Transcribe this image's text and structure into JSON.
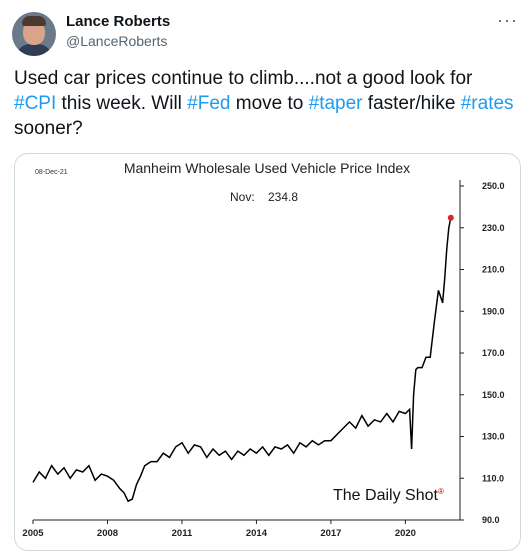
{
  "author": {
    "name": "Lance Roberts",
    "handle": "@LanceRoberts"
  },
  "menu_icon": "more-horizontal-icon",
  "tweet": {
    "parts": [
      {
        "text": "Used car prices continue to climb....not a good look for ",
        "tag": false
      },
      {
        "text": "#CPI",
        "tag": true
      },
      {
        "text": " this week.  Will ",
        "tag": false
      },
      {
        "text": "#Fed",
        "tag": true
      },
      {
        "text": " move to ",
        "tag": false
      },
      {
        "text": "#taper",
        "tag": true
      },
      {
        "text": " faster/hike ",
        "tag": false
      },
      {
        "text": "#rates",
        "tag": true
      },
      {
        "text": " sooner?",
        "tag": false
      }
    ]
  },
  "colors": {
    "hashtag": "#1d9bf0",
    "line": "#000000",
    "marker": "#e0202c",
    "text": "#0f1419",
    "muted": "#536471"
  },
  "chart_data": {
    "type": "line",
    "title": "Manheim Wholesale Used Vehicle Price Index",
    "date_stamp": "08-Dec-21",
    "annotation": "Nov:    234.8",
    "source": "The Daily Shot",
    "source_mark": "®",
    "xlabel": "",
    "ylabel": "",
    "x_ticks": [
      "2005",
      "2008",
      "2011",
      "2014",
      "2017",
      "2020"
    ],
    "x_tick_values": [
      2005,
      2008,
      2011,
      2014,
      2017,
      2020
    ],
    "xlim": [
      2005,
      2022.2
    ],
    "y_ticks": [
      "250.0",
      "230.0",
      "210.0",
      "190.0",
      "170.0",
      "150.0",
      "130.0",
      "110.0",
      "90.0"
    ],
    "y_tick_values": [
      250,
      230,
      210,
      190,
      170,
      150,
      130,
      110,
      90
    ],
    "ylim": [
      90,
      250
    ],
    "y_axis_side": "right",
    "grid": false,
    "series": [
      {
        "x": [
          2005.0,
          2005.25,
          2005.5,
          2005.75,
          2006.0,
          2006.25,
          2006.5,
          2006.75,
          2007.0,
          2007.25,
          2007.5,
          2007.75,
          2008.0,
          2008.25,
          2008.5,
          2008.67,
          2008.83,
          2009.0,
          2009.17,
          2009.33,
          2009.5,
          2009.75,
          2010.0,
          2010.25,
          2010.5,
          2010.75,
          2011.0,
          2011.25,
          2011.5,
          2011.75,
          2012.0,
          2012.25,
          2012.5,
          2012.75,
          2013.0,
          2013.25,
          2013.5,
          2013.75,
          2014.0,
          2014.25,
          2014.5,
          2014.75,
          2015.0,
          2015.25,
          2015.5,
          2015.75,
          2016.0,
          2016.25,
          2016.5,
          2016.75,
          2017.0,
          2017.25,
          2017.5,
          2017.75,
          2018.0,
          2018.25,
          2018.5,
          2018.75,
          2019.0,
          2019.25,
          2019.5,
          2019.75,
          2020.0,
          2020.17,
          2020.25,
          2020.33,
          2020.42,
          2020.5,
          2020.67,
          2020.83,
          2021.0,
          2021.17,
          2021.33,
          2021.42,
          2021.5,
          2021.58,
          2021.67,
          2021.75,
          2021.83
        ],
        "y": [
          108,
          113,
          110,
          116,
          112,
          115,
          110,
          114,
          113,
          116,
          109,
          112,
          111,
          109,
          105,
          103,
          99,
          100,
          107,
          111,
          116,
          118,
          118,
          122,
          120,
          125,
          127,
          122,
          126,
          125,
          120,
          124,
          121,
          123,
          119,
          123,
          121,
          124,
          122,
          125,
          121,
          125,
          124,
          126,
          122,
          127,
          125,
          128,
          126,
          128,
          128,
          131,
          134,
          137,
          134,
          140,
          135,
          138,
          137,
          141,
          137,
          142,
          141,
          143,
          124,
          150,
          162,
          163,
          163,
          168,
          168,
          185,
          200,
          197,
          194,
          205,
          220,
          230,
          234.8
        ]
      }
    ],
    "highlight_point": {
      "x": 2021.83,
      "y": 234.8
    }
  }
}
